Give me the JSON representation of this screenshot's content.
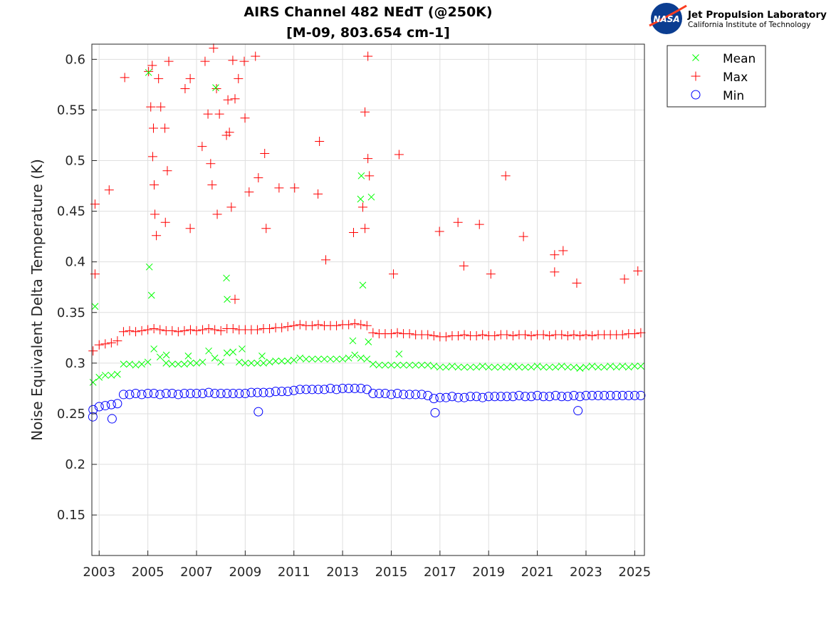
{
  "logo": {
    "agency": "NASA",
    "lab": "Jet Propulsion Laboratory",
    "institute": "California Institute of Technology"
  },
  "chart_data": {
    "type": "scatter",
    "title": "AIRS Channel 482 NEdT (@250K)",
    "subtitle": "[M-09, 803.654 cm-1]",
    "xlabel": "",
    "ylabel": "Noise Equivalent Delta Temperature (K)",
    "xlim": [
      2002.7,
      2025.4
    ],
    "ylim": [
      0.11,
      0.615
    ],
    "xticks": [
      2003,
      2005,
      2007,
      2009,
      2011,
      2013,
      2015,
      2017,
      2019,
      2021,
      2023,
      2025
    ],
    "xtick_labels": [
      "2003",
      "2005",
      "2007",
      "2009",
      "2011",
      "2013",
      "2015",
      "2017",
      "2019",
      "2021",
      "2023",
      "2025"
    ],
    "yticks": [
      0.15,
      0.2,
      0.25,
      0.3,
      0.35,
      0.4,
      0.45,
      0.5,
      0.55,
      0.6
    ],
    "ytick_labels": [
      "0.15",
      "0.2",
      "0.25",
      "0.3",
      "0.35",
      "0.4",
      "0.45",
      "0.5",
      "0.55",
      "0.6"
    ],
    "grid": true,
    "legend_placement": "outside-top-right",
    "x": [
      2002.75,
      2003.0,
      2003.25,
      2003.5,
      2003.75,
      2004.0,
      2004.25,
      2004.5,
      2004.75,
      2005.0,
      2005.25,
      2005.5,
      2005.75,
      2006.0,
      2006.25,
      2006.5,
      2006.75,
      2007.0,
      2007.25,
      2007.5,
      2007.75,
      2008.0,
      2008.25,
      2008.5,
      2008.75,
      2009.0,
      2009.25,
      2009.5,
      2009.75,
      2010.0,
      2010.25,
      2010.5,
      2010.75,
      2011.0,
      2011.25,
      2011.5,
      2011.75,
      2012.0,
      2012.25,
      2012.5,
      2012.75,
      2013.0,
      2013.25,
      2013.5,
      2013.75,
      2014.0,
      2014.25,
      2014.5,
      2014.75,
      2015.0,
      2015.25,
      2015.5,
      2015.75,
      2016.0,
      2016.25,
      2016.5,
      2016.75,
      2017.0,
      2017.25,
      2017.5,
      2017.75,
      2018.0,
      2018.25,
      2018.5,
      2018.75,
      2019.0,
      2019.25,
      2019.5,
      2019.75,
      2020.0,
      2020.25,
      2020.5,
      2020.75,
      2021.0,
      2021.25,
      2021.5,
      2021.75,
      2022.0,
      2022.25,
      2022.5,
      2022.75,
      2023.0,
      2023.25,
      2023.5,
      2023.75,
      2024.0,
      2024.25,
      2024.5,
      2024.75,
      2025.0,
      2025.25
    ],
    "series": [
      {
        "name": "Mean",
        "marker": "x",
        "color": "#00ff00",
        "values": [
          0.281,
          0.286,
          0.288,
          0.288,
          0.289,
          0.299,
          0.299,
          0.298,
          0.299,
          0.301,
          0.314,
          0.306,
          0.3,
          0.299,
          0.299,
          0.299,
          0.3,
          0.3,
          0.301,
          0.312,
          0.305,
          0.301,
          0.31,
          0.311,
          0.301,
          0.3,
          0.3,
          0.3,
          0.3,
          0.301,
          0.302,
          0.302,
          0.302,
          0.303,
          0.305,
          0.304,
          0.304,
          0.304,
          0.304,
          0.304,
          0.304,
          0.304,
          0.305,
          0.308,
          0.305,
          0.304,
          0.299,
          0.298,
          0.298,
          0.298,
          0.298,
          0.298,
          0.298,
          0.298,
          0.298,
          0.298,
          0.297,
          0.296,
          0.296,
          0.297,
          0.296,
          0.296,
          0.296,
          0.296,
          0.297,
          0.296,
          0.296,
          0.296,
          0.296,
          0.297,
          0.296,
          0.296,
          0.296,
          0.297,
          0.296,
          0.296,
          0.296,
          0.297,
          0.296,
          0.296,
          0.295,
          0.296,
          0.297,
          0.296,
          0.296,
          0.297,
          0.296,
          0.297,
          0.296,
          0.297,
          0.297
        ],
        "outliers": [
          [
            2002.83,
            0.356
          ],
          [
            2005.03,
            0.587
          ],
          [
            2005.06,
            0.395
          ],
          [
            2005.15,
            0.367
          ],
          [
            2007.79,
            0.572
          ],
          [
            2008.23,
            0.384
          ],
          [
            2008.26,
            0.363
          ],
          [
            2008.87,
            0.314
          ],
          [
            2005.76,
            0.308
          ],
          [
            2006.66,
            0.307
          ],
          [
            2009.69,
            0.307
          ],
          [
            2013.77,
            0.485
          ],
          [
            2013.74,
            0.462
          ],
          [
            2014.18,
            0.464
          ],
          [
            2013.83,
            0.377
          ],
          [
            2014.06,
            0.321
          ],
          [
            2013.42,
            0.322
          ],
          [
            2015.32,
            0.309
          ],
          [
            2022.75,
            0.295
          ]
        ]
      },
      {
        "name": "Max",
        "marker": "+",
        "color": "#ff0000",
        "values": [
          0.312,
          0.318,
          0.319,
          0.32,
          0.322,
          0.331,
          0.332,
          0.331,
          0.332,
          0.333,
          0.334,
          0.333,
          0.332,
          0.332,
          0.331,
          0.332,
          0.333,
          0.332,
          0.333,
          0.334,
          0.333,
          0.332,
          0.334,
          0.334,
          0.333,
          0.333,
          0.333,
          0.333,
          0.334,
          0.334,
          0.335,
          0.335,
          0.336,
          0.337,
          0.338,
          0.337,
          0.337,
          0.338,
          0.337,
          0.337,
          0.337,
          0.338,
          0.338,
          0.339,
          0.338,
          0.337,
          0.33,
          0.329,
          0.329,
          0.329,
          0.33,
          0.329,
          0.329,
          0.328,
          0.328,
          0.328,
          0.327,
          0.326,
          0.326,
          0.327,
          0.327,
          0.328,
          0.327,
          0.327,
          0.328,
          0.327,
          0.327,
          0.328,
          0.328,
          0.327,
          0.328,
          0.328,
          0.327,
          0.328,
          0.328,
          0.327,
          0.328,
          0.328,
          0.327,
          0.328,
          0.327,
          0.328,
          0.327,
          0.328,
          0.328,
          0.328,
          0.328,
          0.328,
          0.329,
          0.329,
          0.33
        ],
        "outliers": [
          [
            2002.83,
            0.457
          ],
          [
            2002.83,
            0.388
          ],
          [
            2003.41,
            0.471
          ],
          [
            2004.05,
            0.582
          ],
          [
            2005.03,
            0.588
          ],
          [
            2005.18,
            0.594
          ],
          [
            2005.23,
            0.532
          ],
          [
            2005.2,
            0.504
          ],
          [
            2005.26,
            0.476
          ],
          [
            2005.29,
            0.447
          ],
          [
            2005.35,
            0.426
          ],
          [
            2005.12,
            0.553
          ],
          [
            2005.44,
            0.581
          ],
          [
            2005.53,
            0.553
          ],
          [
            2005.7,
            0.532
          ],
          [
            2005.86,
            0.598
          ],
          [
            2005.8,
            0.49
          ],
          [
            2005.72,
            0.439
          ],
          [
            2006.53,
            0.571
          ],
          [
            2006.74,
            0.581
          ],
          [
            2006.74,
            0.433
          ],
          [
            2007.35,
            0.598
          ],
          [
            2007.23,
            0.514
          ],
          [
            2007.47,
            0.546
          ],
          [
            2007.58,
            0.497
          ],
          [
            2007.64,
            0.476
          ],
          [
            2007.7,
            0.611
          ],
          [
            2007.82,
            0.571
          ],
          [
            2007.85,
            0.447
          ],
          [
            2007.94,
            0.546
          ],
          [
            2008.23,
            0.525
          ],
          [
            2008.29,
            0.56
          ],
          [
            2008.35,
            0.528
          ],
          [
            2008.43,
            0.454
          ],
          [
            2008.49,
            0.599
          ],
          [
            2008.58,
            0.561
          ],
          [
            2008.58,
            0.363
          ],
          [
            2008.72,
            0.581
          ],
          [
            2008.96,
            0.598
          ],
          [
            2008.99,
            0.542
          ],
          [
            2009.16,
            0.469
          ],
          [
            2009.42,
            0.603
          ],
          [
            2009.54,
            0.483
          ],
          [
            2009.8,
            0.507
          ],
          [
            2009.86,
            0.433
          ],
          [
            2010.39,
            0.473
          ],
          [
            2011.03,
            0.473
          ],
          [
            2012.05,
            0.519
          ],
          [
            2011.99,
            0.467
          ],
          [
            2012.31,
            0.402
          ],
          [
            2013.45,
            0.429
          ],
          [
            2013.83,
            0.454
          ],
          [
            2014.04,
            0.603
          ],
          [
            2013.92,
            0.548
          ],
          [
            2014.04,
            0.502
          ],
          [
            2014.1,
            0.485
          ],
          [
            2013.92,
            0.433
          ],
          [
            2015.32,
            0.506
          ],
          [
            2015.09,
            0.388
          ],
          [
            2016.98,
            0.43
          ],
          [
            2017.74,
            0.439
          ],
          [
            2017.98,
            0.396
          ],
          [
            2018.62,
            0.437
          ],
          [
            2019.7,
            0.485
          ],
          [
            2020.43,
            0.425
          ],
          [
            2021.71,
            0.407
          ],
          [
            2022.06,
            0.411
          ],
          [
            2021.71,
            0.39
          ],
          [
            2019.09,
            0.388
          ],
          [
            2022.62,
            0.379
          ],
          [
            2024.58,
            0.383
          ],
          [
            2025.13,
            0.391
          ]
        ]
      },
      {
        "name": "Min",
        "marker": "o",
        "color": "#0000ff",
        "values": [
          0.254,
          0.257,
          0.258,
          0.259,
          0.26,
          0.269,
          0.269,
          0.27,
          0.269,
          0.27,
          0.27,
          0.269,
          0.27,
          0.27,
          0.269,
          0.27,
          0.27,
          0.27,
          0.27,
          0.271,
          0.27,
          0.27,
          0.27,
          0.27,
          0.27,
          0.27,
          0.271,
          0.271,
          0.271,
          0.271,
          0.272,
          0.272,
          0.272,
          0.273,
          0.274,
          0.274,
          0.274,
          0.274,
          0.274,
          0.275,
          0.274,
          0.275,
          0.275,
          0.275,
          0.275,
          0.274,
          0.27,
          0.27,
          0.27,
          0.269,
          0.27,
          0.269,
          0.269,
          0.269,
          0.269,
          0.268,
          0.265,
          0.266,
          0.266,
          0.267,
          0.266,
          0.266,
          0.267,
          0.267,
          0.266,
          0.267,
          0.267,
          0.267,
          0.267,
          0.267,
          0.268,
          0.267,
          0.267,
          0.268,
          0.267,
          0.267,
          0.268,
          0.267,
          0.267,
          0.268,
          0.267,
          0.268,
          0.268,
          0.268,
          0.268,
          0.268,
          0.268,
          0.268,
          0.268,
          0.268,
          0.268
        ],
        "outliers": [
          [
            2003.53,
            0.245
          ],
          [
            2002.74,
            0.247
          ],
          [
            2016.8,
            0.251
          ],
          [
            2009.54,
            0.252
          ],
          [
            2022.67,
            0.253
          ]
        ]
      }
    ]
  }
}
